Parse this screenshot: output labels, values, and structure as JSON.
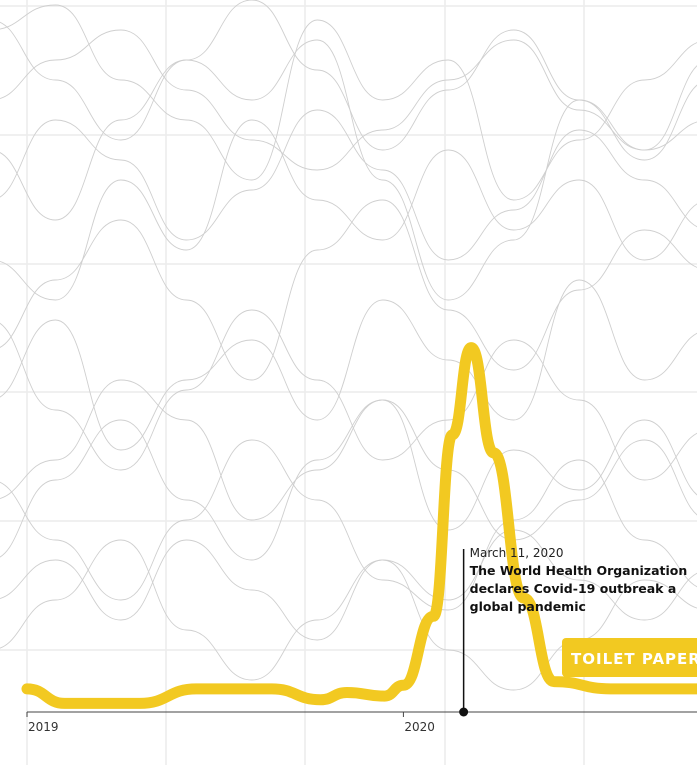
{
  "chart_data": {
    "type": "line",
    "title": "",
    "xlabel": "",
    "ylabel": "",
    "x_tick_labels": [
      "2019",
      "2020"
    ],
    "highlight_series": {
      "name": "TOILET PAPER",
      "color": "#f2c921",
      "points": [
        {
          "x": 2019.0,
          "y": 5
        },
        {
          "x": 2019.1,
          "y": 1
        },
        {
          "x": 2019.3,
          "y": 1
        },
        {
          "x": 2019.45,
          "y": 5
        },
        {
          "x": 2019.65,
          "y": 5
        },
        {
          "x": 2019.78,
          "y": 2
        },
        {
          "x": 2019.85,
          "y": 4
        },
        {
          "x": 2019.95,
          "y": 3
        },
        {
          "x": 2020.0,
          "y": 6
        },
        {
          "x": 2020.08,
          "y": 25
        },
        {
          "x": 2020.13,
          "y": 75
        },
        {
          "x": 2020.18,
          "y": 99
        },
        {
          "x": 2020.24,
          "y": 70
        },
        {
          "x": 2020.32,
          "y": 30
        },
        {
          "x": 2020.4,
          "y": 7
        },
        {
          "x": 2020.55,
          "y": 5
        },
        {
          "x": 2020.78,
          "y": 5
        }
      ]
    },
    "background_series_color": "#cfcfcf",
    "annotation": {
      "x": 2020.16,
      "date": "March 11, 2020",
      "lines": [
        "The World Health Organization",
        "declares Covid-19 outbreak a",
        "global pandemic"
      ]
    },
    "grid": true,
    "legend": "inline-label"
  }
}
